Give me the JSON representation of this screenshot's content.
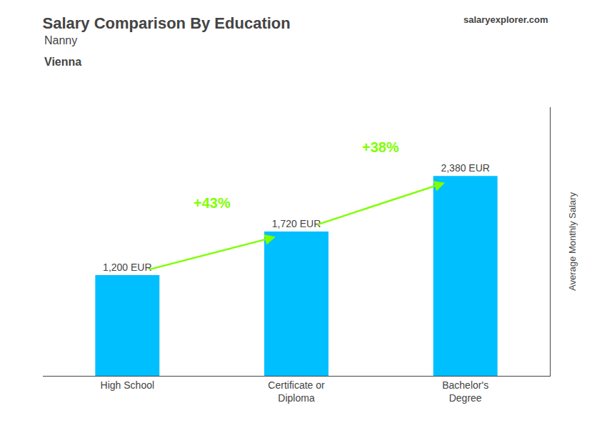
{
  "chart_data": {
    "type": "bar",
    "title": "Salary Comparison By Education",
    "subtitle": [
      "Nanny",
      "Vienna"
    ],
    "categories": [
      "High School",
      "Certificate or\nDiploma",
      "Bachelor's\nDegree"
    ],
    "values": [
      1200,
      1720,
      2380
    ],
    "value_labels": [
      "1,200 EUR",
      "1,720 EUR",
      "2,380 EUR"
    ],
    "color": "#00BFFF",
    "ylabel": "Average Monthly Salary",
    "ylim": [
      0,
      3200
    ],
    "grid": false,
    "data_labels": true,
    "tick_labels": "x",
    "annotations": [
      {
        "text": "+43%",
        "between": [
          0,
          1
        ],
        "color": "#7FFF00"
      },
      {
        "text": "+38%",
        "between": [
          1,
          2
        ],
        "color": "#7FFF00"
      },
      {
        "text": "salaryexplorer.com"
      }
    ]
  }
}
